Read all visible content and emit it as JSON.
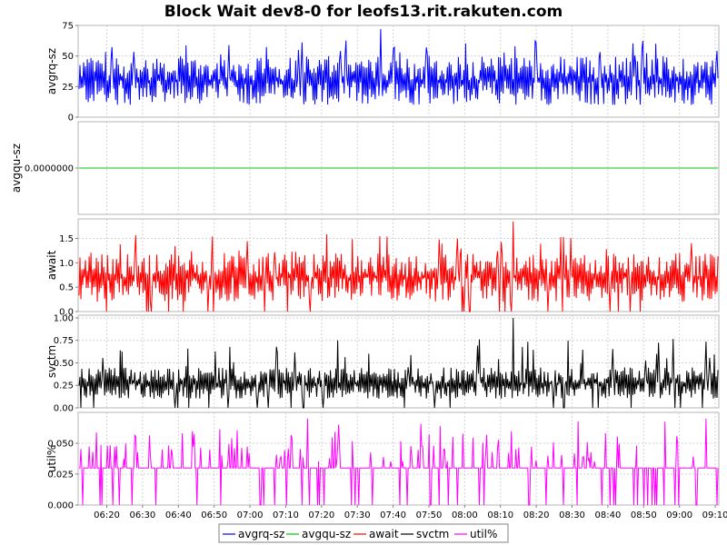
{
  "chart_data": {
    "type": "line",
    "title": "Block Wait dev8-0 for leofs13.rit.rakuten.com",
    "x_tick_labels": [
      "06:20",
      "06:30",
      "06:40",
      "06:50",
      "07:00",
      "07:10",
      "07:20",
      "07:30",
      "07:40",
      "07:50",
      "08:00",
      "08:10",
      "08:20",
      "08:30",
      "08:40",
      "08:50",
      "09:00",
      "09:10"
    ],
    "x_range": [
      "06:12",
      "09:11"
    ],
    "grid": true,
    "legend_position": "bottom",
    "panels": [
      {
        "ylabel": "avgrq-sz",
        "series_name": "avgrq-sz",
        "color": "#0000ff",
        "ylim": [
          0,
          75
        ],
        "y_ticks": [
          0,
          25,
          50,
          75
        ],
        "y_tick_labels": [
          "0",
          "25",
          "50",
          "75"
        ],
        "typical_range": [
          10,
          50
        ],
        "peak": 72
      },
      {
        "ylabel": "avgqu-sz",
        "series_name": "avgqu-sz",
        "color": "#00c800",
        "ylim": [
          -1,
          1
        ],
        "y_ticks": [
          0
        ],
        "y_tick_labels": [
          "0.0000000"
        ],
        "constant_value": 0
      },
      {
        "ylabel": "await",
        "series_name": "await",
        "color": "#ff0000",
        "ylim": [
          0,
          1.9
        ],
        "y_ticks": [
          0,
          0.5,
          1.0,
          1.5
        ],
        "y_tick_labels": [
          "0.0",
          "0.5",
          "1.0",
          "1.5"
        ],
        "typical_range": [
          0.2,
          1.2
        ],
        "peak": 1.85
      },
      {
        "ylabel": "svctm",
        "series_name": "svctm",
        "color": "#000000",
        "ylim": [
          0,
          1.03
        ],
        "y_ticks": [
          0,
          0.25,
          0.5,
          0.75,
          1.0
        ],
        "y_tick_labels": [
          "0.00",
          "0.25",
          "0.50",
          "0.75",
          "1.00"
        ],
        "typical_range": [
          0.1,
          0.45
        ],
        "peak": 1.0
      },
      {
        "ylabel": "util%",
        "series_name": "util%",
        "color": "#ff00ff",
        "ylim": [
          0,
          0.075
        ],
        "y_ticks": [
          0,
          0.025,
          0.05
        ],
        "y_tick_labels": [
          "0.000",
          "0.025",
          "0.050"
        ],
        "baseline": 0.03,
        "peak": 0.07
      }
    ],
    "legend": [
      {
        "name": "avgrq-sz",
        "color": "#0000ff"
      },
      {
        "name": "avgqu-sz",
        "color": "#00c800"
      },
      {
        "name": "await",
        "color": "#ff0000"
      },
      {
        "name": "svctm",
        "color": "#000000"
      },
      {
        "name": "util%",
        "color": "#ff00ff"
      }
    ]
  }
}
